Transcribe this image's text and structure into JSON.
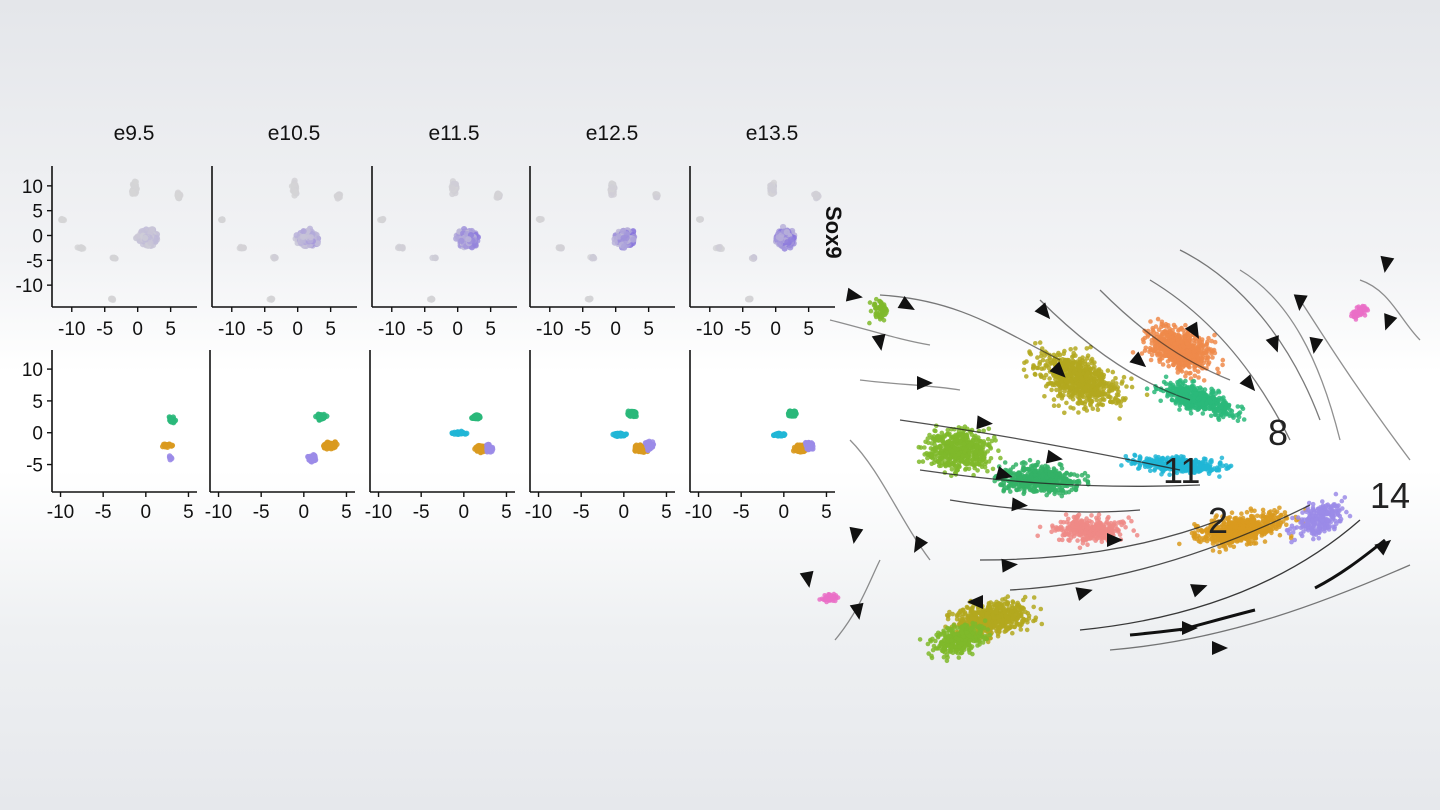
{
  "gene_label": "Sox9",
  "colors": {
    "expr_low": "#d6d6d6",
    "expr_high": "#6a4fe0",
    "cluster_2": "#d99a1f",
    "cluster_8": "#2ab87a",
    "cluster_11": "#20b6d6",
    "cluster_14": "#9b8be8",
    "cluster_orange": "#ee8a4a",
    "cluster_olive": "#b3a81e",
    "cluster_lime": "#7fb82a",
    "cluster_salmon": "#ef8a86",
    "cluster_green": "#34b266",
    "cluster_pink": "#ea6fc7",
    "arrow": "#111111"
  },
  "chart_data": [
    {
      "type": "scatter",
      "description_kind": "UMAP feature plot (gene expression)",
      "panels": [
        "e9.5",
        "e10.5",
        "e11.5",
        "e12.5",
        "e13.5"
      ],
      "gene": "Sox9",
      "x_ticks": [
        "-10",
        "-5",
        "0",
        "5"
      ],
      "y_ticks": [
        "10",
        "5",
        "0",
        "-5",
        "-10"
      ],
      "xlim": [
        -13,
        9
      ],
      "ylim": [
        -14,
        14
      ],
      "series": [
        {
          "panel": "e9.5",
          "expression_level": 0.25
        },
        {
          "panel": "e10.5",
          "expression_level": 0.5
        },
        {
          "panel": "e11.5",
          "expression_level": 0.7
        },
        {
          "panel": "e12.5",
          "expression_level": 0.75
        },
        {
          "panel": "e13.5",
          "expression_level": 0.85
        }
      ]
    },
    {
      "type": "scatter",
      "description_kind": "cluster-colored embedding per stage",
      "panels": [
        "e9.5",
        "e10.5",
        "e11.5",
        "e12.5",
        "e13.5"
      ],
      "x_ticks": [
        "-10",
        "-5",
        "0",
        "5"
      ],
      "y_ticks": [
        "10",
        "5",
        "0",
        "-5"
      ],
      "xlim": [
        -11,
        6
      ],
      "ylim": [
        -9,
        13
      ],
      "series": [
        {
          "panel": "e9.5",
          "clusters": [
            {
              "cluster": "8",
              "center": [
                3,
                2
              ],
              "n": 20
            },
            {
              "cluster": "2",
              "center": [
                2.5,
                -2
              ],
              "n": 18
            },
            {
              "cluster": "14",
              "center": [
                2.8,
                -4
              ],
              "n": 6
            }
          ]
        },
        {
          "panel": "e10.5",
          "clusters": [
            {
              "cluster": "8",
              "center": [
                2,
                2.5
              ],
              "n": 60
            },
            {
              "cluster": "2",
              "center": [
                3,
                -2
              ],
              "n": 140
            },
            {
              "cluster": "14",
              "center": [
                1,
                -4
              ],
              "n": 30
            }
          ]
        },
        {
          "panel": "e11.5",
          "clusters": [
            {
              "cluster": "8",
              "center": [
                1.5,
                2.5
              ],
              "n": 80
            },
            {
              "cluster": "11",
              "center": [
                -0.5,
                0
              ],
              "n": 40
            },
            {
              "cluster": "2",
              "center": [
                2,
                -2.5
              ],
              "n": 150
            },
            {
              "cluster": "14",
              "center": [
                3,
                -2.5
              ],
              "n": 40
            }
          ]
        },
        {
          "panel": "e12.5",
          "clusters": [
            {
              "cluster": "8",
              "center": [
                1,
                3
              ],
              "n": 110
            },
            {
              "cluster": "11",
              "center": [
                -0.5,
                -0.3
              ],
              "n": 90
            },
            {
              "cluster": "2",
              "center": [
                2,
                -2.5
              ],
              "n": 180
            },
            {
              "cluster": "14",
              "center": [
                3,
                -2
              ],
              "n": 60
            }
          ]
        },
        {
          "panel": "e13.5",
          "clusters": [
            {
              "cluster": "8",
              "center": [
                1,
                3
              ],
              "n": 110
            },
            {
              "cluster": "11",
              "center": [
                -0.5,
                -0.3
              ],
              "n": 70
            },
            {
              "cluster": "2",
              "center": [
                2,
                -2.5
              ],
              "n": 170
            },
            {
              "cluster": "14",
              "center": [
                3,
                -2
              ],
              "n": 70
            }
          ]
        }
      ]
    },
    {
      "type": "scatter",
      "description_kind": "RNA velocity stream plot",
      "cluster_labels": [
        "8",
        "11",
        "2",
        "14"
      ]
    }
  ]
}
